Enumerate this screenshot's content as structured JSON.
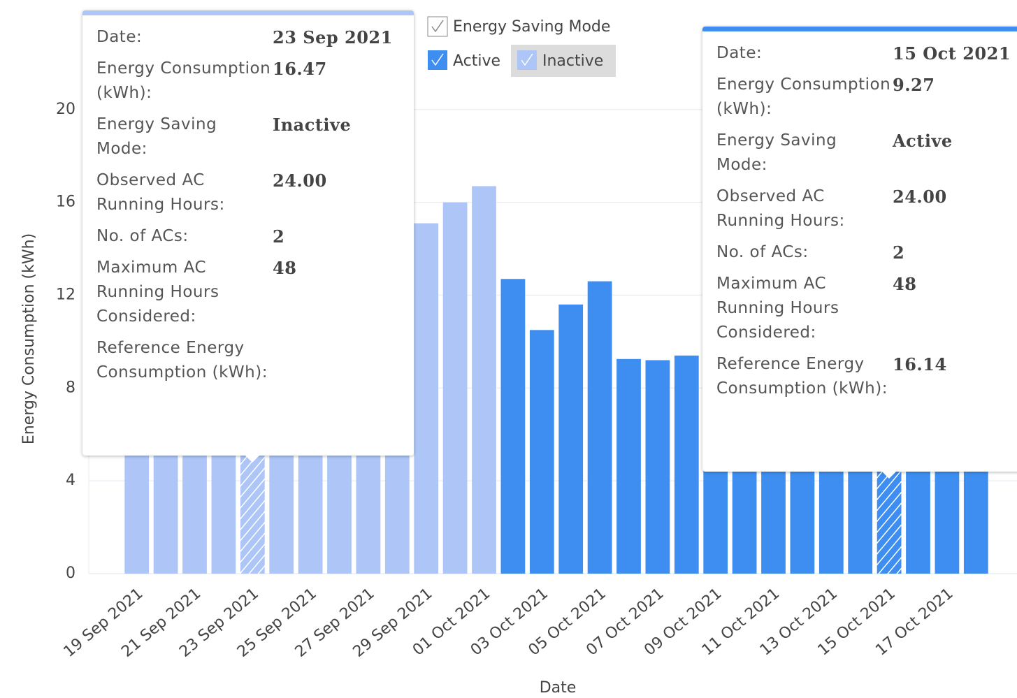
{
  "chart_data": {
    "type": "bar",
    "xlabel": "Date",
    "ylabel": "Energy Consumption (kWh)",
    "categories": [
      "19 Sep 2021",
      null,
      "21 Sep 2021",
      null,
      "23 Sep 2021",
      null,
      "25 Sep 2021",
      null,
      "27 Sep 2021",
      null,
      "29 Sep 2021",
      null,
      "01 Oct 2021",
      null,
      "03 Oct 2021",
      null,
      "05 Oct 2021",
      null,
      "07 Oct 2021",
      null,
      "09 Oct 2021",
      null,
      "11 Oct 2021",
      null,
      "13 Oct 2021",
      null,
      "15 Oct 2021",
      null,
      "17 Oct 2021",
      null
    ],
    "series": [
      {
        "name": "Active",
        "color": "#3d8ef0",
        "values": [
          null,
          null,
          null,
          null,
          null,
          null,
          null,
          null,
          null,
          null,
          null,
          null,
          null,
          12.7,
          10.5,
          11.6,
          12.6,
          9.25,
          9.2,
          9.4,
          9.5,
          9.4,
          9.6,
          9.5,
          9.4,
          9.6,
          9.27,
          11.3,
          11.6,
          12.1
        ]
      },
      {
        "name": "Inactive",
        "color": "#adc6f7",
        "values": [
          14.5,
          14.0,
          15.0,
          16.2,
          16.47,
          16.0,
          19.3,
          15.4,
          14.5,
          14.5,
          15.1,
          16.0,
          16.7,
          null,
          null,
          null,
          null,
          null,
          null,
          null,
          null,
          null,
          null,
          null,
          null,
          null,
          null,
          null,
          null,
          null
        ]
      }
    ],
    "ylim": [
      0,
      24
    ],
    "yticks": [
      0,
      4,
      8,
      12,
      16,
      20
    ],
    "grid": true,
    "legend": {
      "title": "Energy Saving Mode",
      "position": "top"
    },
    "tooltips": [
      {
        "rows": [
          [
            "Date:",
            "23 Sep 2021"
          ],
          [
            "Energy Consumption (kWh):",
            "16.47"
          ],
          [
            "Energy Saving Mode:",
            "Inactive"
          ],
          [
            "Observed AC Running Hours:",
            "24.00"
          ],
          [
            "No. of ACs:",
            "2"
          ],
          [
            "Maximum AC Running Hours Considered:",
            "48"
          ],
          [
            "Reference Energy Consumption (kWh):"
          ]
        ]
      },
      {
        "rows": [
          [
            "Date:",
            "15 Oct 2021"
          ],
          [
            "Energy Consumption (kWh):",
            "9.27"
          ],
          [
            "Energy Saving Mode:",
            "Active"
          ],
          [
            "Observed AC Running Hours:",
            "24.00"
          ],
          [
            "No. of ACs:",
            "2"
          ],
          [
            "Maximum AC Running Hours Considered:",
            "48"
          ],
          [
            "Reference Energy Consumption (kWh):",
            "16.14"
          ]
        ]
      }
    ]
  }
}
